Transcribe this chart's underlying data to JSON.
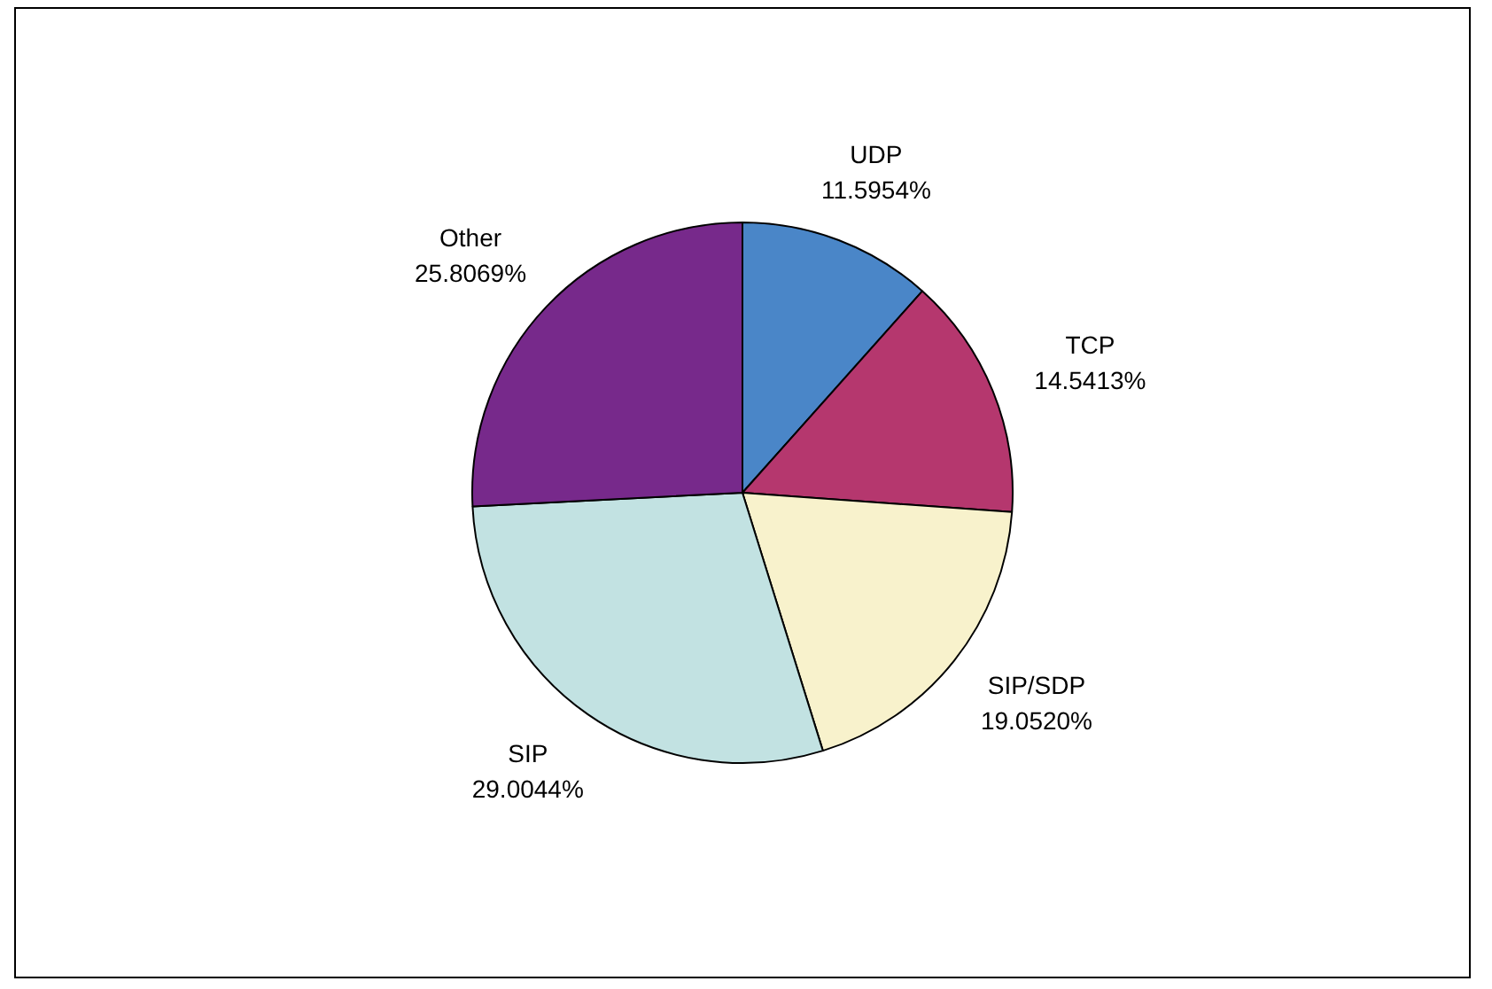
{
  "chart_data": {
    "type": "pie",
    "categories": [
      "UDP",
      "TCP",
      "SIP/SDP",
      "SIP",
      "Other"
    ],
    "values": [
      11.5954,
      14.5413,
      19.052,
      29.0044,
      25.8069
    ],
    "value_labels": [
      "11.5954%",
      "14.5413%",
      "19.0520%",
      "29.0044%",
      "25.8069%"
    ],
    "colors": [
      "#4a86c8",
      "#b5376e",
      "#f8f2cc",
      "#c2e2e2",
      "#77298b"
    ]
  }
}
